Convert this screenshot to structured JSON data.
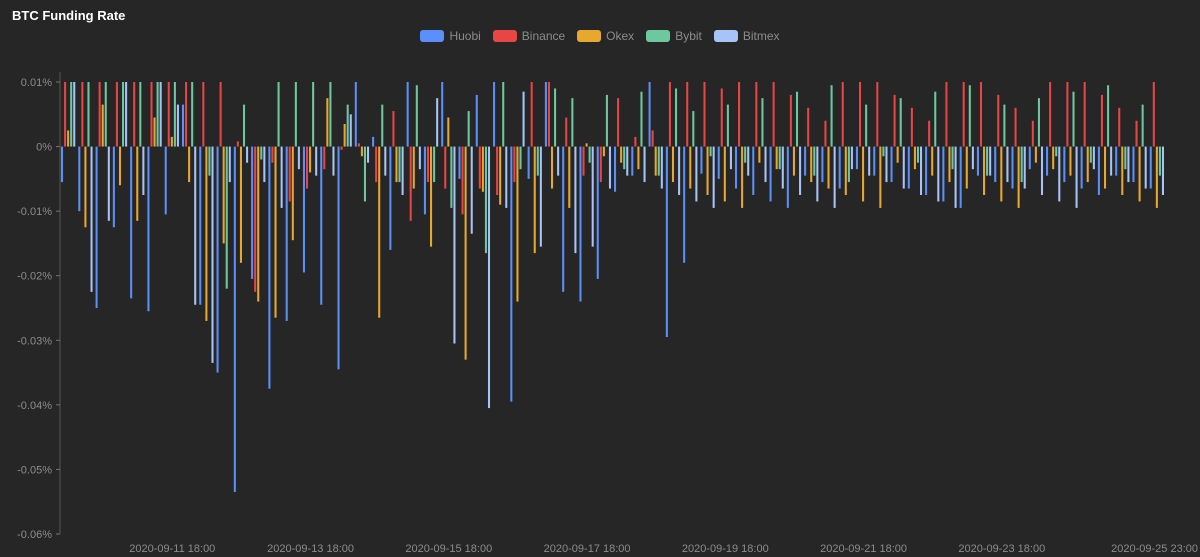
{
  "chart_data": {
    "type": "bar",
    "title": "BTC Funding Rate",
    "xlabel": "",
    "ylabel": "",
    "y_unit": "%",
    "ylim": [
      -0.06,
      0.01
    ],
    "y_ticks": [
      0.01,
      0,
      -0.01,
      -0.02,
      -0.03,
      -0.04,
      -0.05,
      -0.06
    ],
    "y_tick_labels": [
      "0.01%",
      "0%",
      "-0.01%",
      "-0.02%",
      "-0.03%",
      "-0.04%",
      "-0.05%",
      "-0.06%"
    ],
    "x_tick_labels": [
      "2020-09-11 18:00",
      "2020-09-13 18:00",
      "2020-09-15 18:00",
      "2020-09-17 18:00",
      "2020-09-19 18:00",
      "2020-09-21 18:00",
      "2020-09-23 18:00",
      "2020-09-25 23:00"
    ],
    "x_tick_period_index": [
      6,
      14,
      22,
      30,
      38,
      46,
      54,
      63
    ],
    "legend_position": "top-center",
    "grid": false,
    "series": [
      {
        "name": "Huobi",
        "color": "#5b8ff9",
        "values": [
          -0.0055,
          -0.01,
          -0.025,
          -0.0125,
          -0.0235,
          -0.0255,
          -0.0105,
          0.0065,
          -0.0245,
          -0.035,
          -0.0535,
          -0.0205,
          -0.0375,
          -0.027,
          -0.0195,
          -0.0245,
          -0.0345,
          0.01,
          0.0015,
          -0.016,
          0.01,
          -0.0105,
          0.01,
          -0.005,
          0.008,
          0.01,
          -0.0395,
          -0.005,
          0.01,
          -0.0225,
          -0.024,
          -0.0205,
          -0.007,
          -0.0045,
          0.01,
          -0.0295,
          -0.018,
          -0.0042,
          -0.005,
          -0.0065,
          -0.0075,
          -0.0085,
          -0.0095,
          -0.0045,
          -0.0055,
          -0.0065,
          -0.0035,
          -0.0045,
          -0.0055,
          -0.0065,
          -0.0075,
          -0.0085,
          -0.0095,
          -0.0045,
          -0.0055,
          -0.0065,
          -0.0035,
          -0.0045,
          -0.0055,
          -0.0065,
          -0.0075,
          -0.0045,
          -0.0055,
          -0.0065
        ]
      },
      {
        "name": "Binance",
        "color": "#e84545",
        "values": [
          0.01,
          0.01,
          0.01,
          0.01,
          0.01,
          0.01,
          0.01,
          0.01,
          0.01,
          0.01,
          0.0008,
          -0.0225,
          -0.0025,
          -0.0085,
          -0.0065,
          -0.0035,
          -0.0005,
          0.0005,
          -0.0055,
          0.0055,
          -0.0115,
          -0.0055,
          -0.0065,
          -0.0105,
          -0.0065,
          -0.0075,
          -0.0055,
          0.01,
          0.01,
          0.0045,
          -0.0045,
          -0.0055,
          0.0075,
          0.0015,
          0.0025,
          0.01,
          0.01,
          0.01,
          0.009,
          0.01,
          0.01,
          0.01,
          0.008,
          0.006,
          0.004,
          0.01,
          0.01,
          0.01,
          0.008,
          0.006,
          0.004,
          0.01,
          0.01,
          0.01,
          0.008,
          0.006,
          0.004,
          0.01,
          0.01,
          0.01,
          0.008,
          0.006,
          0.004,
          0.01
        ]
      },
      {
        "name": "Okex",
        "color": "#e8a82e",
        "values": [
          0.0025,
          -0.0125,
          0.0065,
          -0.006,
          -0.0115,
          0.0045,
          0.0015,
          -0.0055,
          -0.027,
          -0.015,
          -0.018,
          -0.024,
          -0.0265,
          -0.0145,
          -0.004,
          0.0075,
          0.0035,
          -0.0015,
          -0.0265,
          -0.0055,
          -0.0065,
          -0.0155,
          0.0045,
          -0.033,
          -0.007,
          -0.009,
          -0.024,
          -0.0165,
          -0.0065,
          -0.0095,
          0.0005,
          -0.0015,
          -0.0025,
          -0.0035,
          -0.0045,
          -0.0055,
          -0.0065,
          -0.0075,
          -0.0085,
          -0.0095,
          -0.0025,
          -0.0035,
          -0.0045,
          -0.0055,
          -0.0065,
          -0.0075,
          -0.0085,
          -0.0095,
          -0.0025,
          -0.0035,
          -0.0045,
          -0.0055,
          -0.0065,
          -0.0075,
          -0.0085,
          -0.0095,
          -0.0025,
          -0.0035,
          -0.0045,
          -0.0055,
          -0.0065,
          -0.0075,
          -0.0085,
          -0.0095
        ]
      },
      {
        "name": "Bybit",
        "color": "#6dc8a0",
        "values": [
          0.01,
          0.01,
          0.01,
          0.01,
          0.01,
          0.01,
          0.01,
          0.01,
          -0.0045,
          -0.022,
          0.0065,
          -0.002,
          0.01,
          0.01,
          0.01,
          0.01,
          0.0065,
          -0.0085,
          0.0065,
          -0.0055,
          0.0095,
          -0.0055,
          -0.0095,
          0.0055,
          -0.0165,
          0.01,
          -0.0035,
          -0.0045,
          0.009,
          0.0075,
          -0.0025,
          0.008,
          -0.0035,
          0.0085,
          -0.0045,
          0.009,
          0.0055,
          -0.0015,
          0.0065,
          -0.0025,
          0.0075,
          -0.0035,
          0.0085,
          -0.0045,
          0.0095,
          -0.0055,
          0.0065,
          -0.0015,
          0.0075,
          -0.0025,
          0.0085,
          -0.0035,
          0.0095,
          -0.0045,
          0.0065,
          -0.0055,
          0.0075,
          -0.0015,
          0.0085,
          -0.0025,
          0.0095,
          -0.0035,
          0.0065,
          -0.0045
        ]
      },
      {
        "name": "Bitmex",
        "color": "#a6c4f7",
        "values": [
          0.01,
          -0.0225,
          -0.0115,
          0.01,
          -0.0075,
          0.01,
          0.0065,
          -0.0245,
          -0.0335,
          -0.0055,
          -0.0025,
          -0.0055,
          -0.0095,
          -0.0035,
          -0.0045,
          -0.0045,
          0.005,
          -0.0025,
          -0.0045,
          -0.0075,
          -0.0035,
          0.0075,
          -0.0305,
          -0.0135,
          -0.0405,
          -0.0095,
          0.0085,
          -0.0155,
          -0.0045,
          -0.0165,
          -0.0155,
          -0.0065,
          -0.0045,
          -0.0055,
          -0.0065,
          -0.0075,
          -0.0085,
          -0.0095,
          -0.0035,
          -0.0045,
          -0.0055,
          -0.0065,
          -0.0075,
          -0.0085,
          -0.0095,
          -0.0035,
          -0.0045,
          -0.0055,
          -0.0065,
          -0.0075,
          -0.0085,
          -0.0095,
          -0.0035,
          -0.0045,
          -0.0055,
          -0.0065,
          -0.0075,
          -0.0085,
          -0.0095,
          -0.0035,
          -0.0045,
          -0.0055,
          -0.0065,
          -0.0075
        ]
      }
    ]
  }
}
